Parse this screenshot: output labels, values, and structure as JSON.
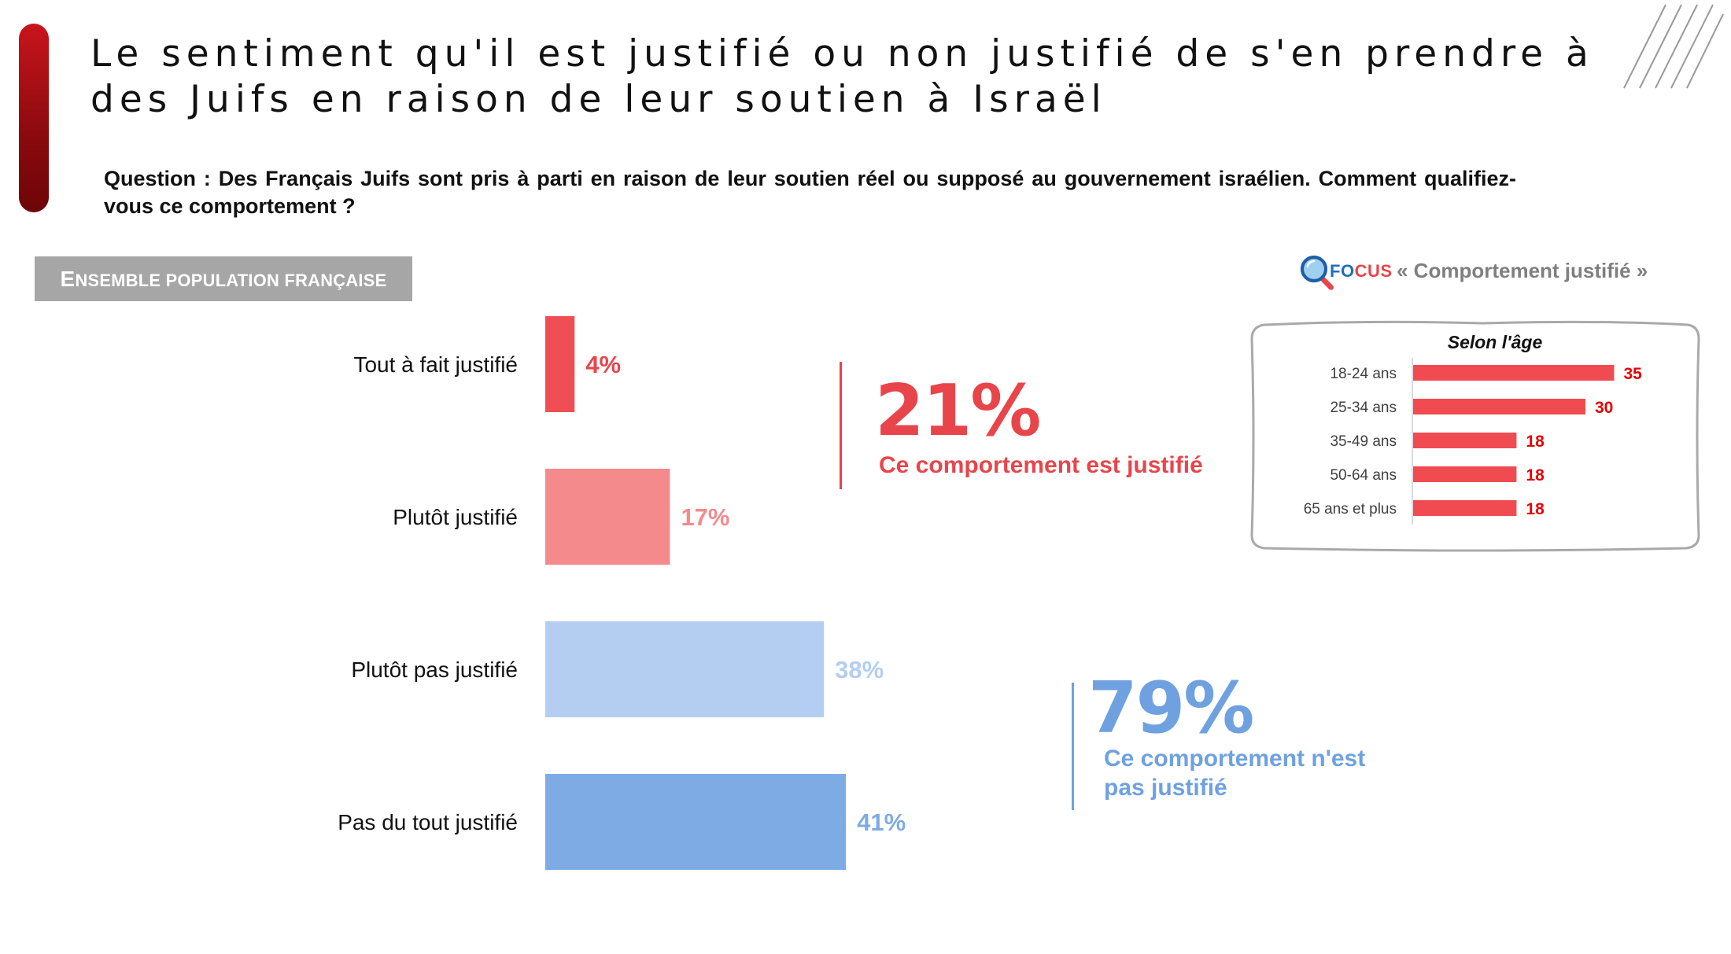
{
  "header": {
    "title": "Le sentiment qu'il est justifié ou non justifié de s'en prendre à des Juifs en raison de leur soutien à Israël",
    "question": "Question : Des Français Juifs sont pris à parti en raison de leur soutien réel ou supposé au gouvernement israélien. Comment qualifiez-vous ce comportement ?"
  },
  "section": {
    "first_letter": "E",
    "rest": "nsemble population française"
  },
  "colors": {
    "accent_red": "#c8151b",
    "bar_1": "#f04e55",
    "bar_2": "#f48a8c",
    "bar_3": "#b3cef1",
    "bar_4": "#7eabe4",
    "justified_red": "#e8454b",
    "not_justified_blue": "#6fa1e0",
    "focus_bar": "#ef4b51",
    "focus_value": "#e60000"
  },
  "chart_data": [
    {
      "type": "bar",
      "orientation": "horizontal",
      "title": "Ensemble population française",
      "categories": [
        "Tout à fait justifié",
        "Plutôt justifié",
        "Plutôt pas justifié",
        "Pas du tout justifié"
      ],
      "values": [
        4,
        17,
        38,
        41
      ],
      "value_labels": [
        "4%",
        "17%",
        "38%",
        "41%"
      ],
      "unit": "%",
      "xlim": [
        0,
        45
      ]
    },
    {
      "type": "bar",
      "orientation": "horizontal",
      "title": "Selon l'âge",
      "categories": [
        "18-24 ans",
        "25-34 ans",
        "35-49 ans",
        "50-64 ans",
        "65 ans et plus"
      ],
      "values": [
        35,
        30,
        18,
        18,
        18
      ],
      "value_labels": [
        "35",
        "30",
        "18",
        "18",
        "18"
      ],
      "unit": "%",
      "xlim": [
        0,
        40
      ]
    }
  ],
  "callouts": {
    "justified": {
      "pct": "21%",
      "label": "Ce comportement est justifié"
    },
    "not_justified": {
      "pct": "79%",
      "label_line1": "Ce comportement n'est",
      "label_line2": "pas justifié"
    }
  },
  "focus": {
    "fo": "FO",
    "cus": "CUS",
    "subtitle": "« Comportement justifié »",
    "heading": "Selon l'âge"
  }
}
